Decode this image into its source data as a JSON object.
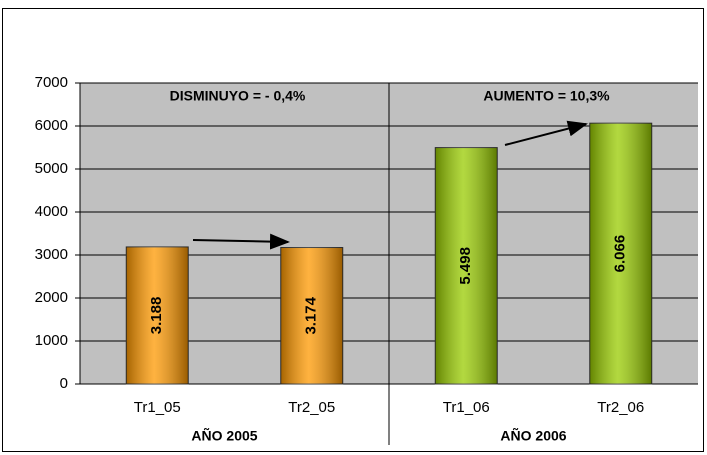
{
  "chart_data": {
    "type": "bar",
    "categories": [
      "Tr1_05",
      "Tr2_05",
      "Tr1_06",
      "Tr2_06"
    ],
    "values": [
      3188,
      3174,
      5498,
      6066
    ],
    "value_labels": [
      "3.188",
      "3.174",
      "5.498",
      "6.066"
    ],
    "colors": [
      "#ff9900",
      "#ff9900",
      "#99cc00",
      "#99cc00"
    ],
    "group_labels": [
      "AÑO 2005",
      "AÑO 2006"
    ],
    "annotations": [
      "DISMINUYO = - 0,4%",
      "AUMENTO = 10,3%"
    ],
    "ylim": [
      0,
      7000
    ],
    "yticks": [
      0,
      1000,
      2000,
      3000,
      4000,
      5000,
      6000,
      7000
    ],
    "grid": true
  }
}
